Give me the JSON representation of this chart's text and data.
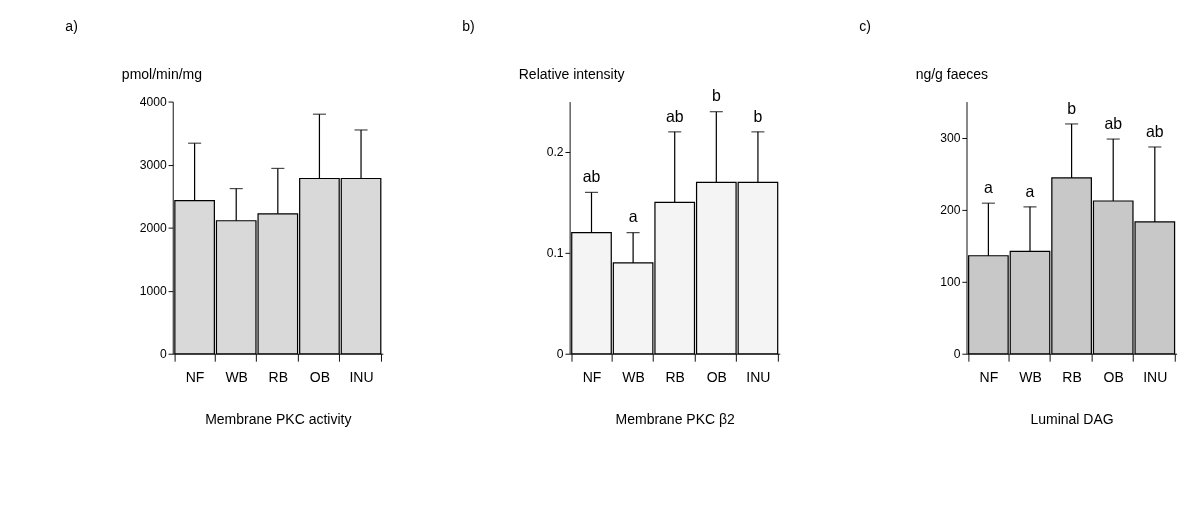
{
  "chart_data": [
    {
      "type": "bar",
      "title": "a)",
      "ylabel": "pmol/min/mg",
      "xlabel": "Membrane PKC activity",
      "categories": [
        "NF",
        "WB",
        "RB",
        "OB",
        "INU"
      ],
      "values": [
        2430,
        2110,
        2220,
        2780,
        2780
      ],
      "errors": [
        [
          2430,
          3340
        ],
        [
          2110,
          2620
        ],
        [
          2220,
          2940
        ],
        [
          2780,
          3800
        ],
        [
          2780,
          3550
        ]
      ],
      "color": "#d9d9d9",
      "ylim": [
        0,
        4000
      ],
      "yticks": [
        0,
        1000,
        2000,
        3000,
        4000
      ],
      "grid": false
    },
    {
      "type": "bar",
      "title": "b)",
      "ylabel": "Relative intensity",
      "xlabel": "Membrane PKC β2",
      "categories": [
        "NF",
        "WB",
        "RB",
        "OB",
        "INU"
      ],
      "values": [
        0.12,
        0.09,
        0.15,
        0.17,
        0.17
      ],
      "errors": [
        [
          0.12,
          0.16
        ],
        [
          0.09,
          0.12
        ],
        [
          0.15,
          0.22
        ],
        [
          0.17,
          0.24
        ],
        [
          0.17,
          0.22
        ]
      ],
      "color": "#f4f4f4",
      "ylim": [
        0,
        0.25
      ],
      "yticks": [
        0,
        0.1,
        0.2
      ],
      "grid": false,
      "annotations": [
        {
          "text": "ab",
          "x": "NF",
          "y": 0.16
        },
        {
          "text": "a",
          "x": "WB",
          "y": 0.12
        },
        {
          "text": "ab",
          "x": "RB",
          "y": 0.22
        },
        {
          "text": "b",
          "x": "OB",
          "y": 0.24
        },
        {
          "text": "b",
          "x": "INU",
          "y": 0.22
        }
      ]
    },
    {
      "type": "bar",
      "title": "c)",
      "ylabel": "ng/g faeces",
      "xlabel": "Luminal DAG",
      "categories": [
        "NF",
        "WB",
        "RB",
        "OB",
        "INU"
      ],
      "values": [
        136,
        142,
        244,
        212,
        183
      ],
      "errors": [
        [
          136,
          209
        ],
        [
          142,
          204
        ],
        [
          244,
          319
        ],
        [
          212,
          298
        ],
        [
          183,
          287
        ]
      ],
      "color": "#c8c8c8",
      "ylim": [
        0,
        350
      ],
      "yticks": [
        0,
        100,
        200,
        300
      ],
      "grid": false,
      "annotations": [
        {
          "text": "a",
          "x": "NF",
          "y": 209
        },
        {
          "text": "a",
          "x": "WB",
          "y": 204
        },
        {
          "text": "b",
          "x": "RB",
          "y": 319
        },
        {
          "text": "ab",
          "x": "OB",
          "y": 298
        },
        {
          "text": "ab",
          "x": "INU",
          "y": 287
        }
      ]
    }
  ]
}
